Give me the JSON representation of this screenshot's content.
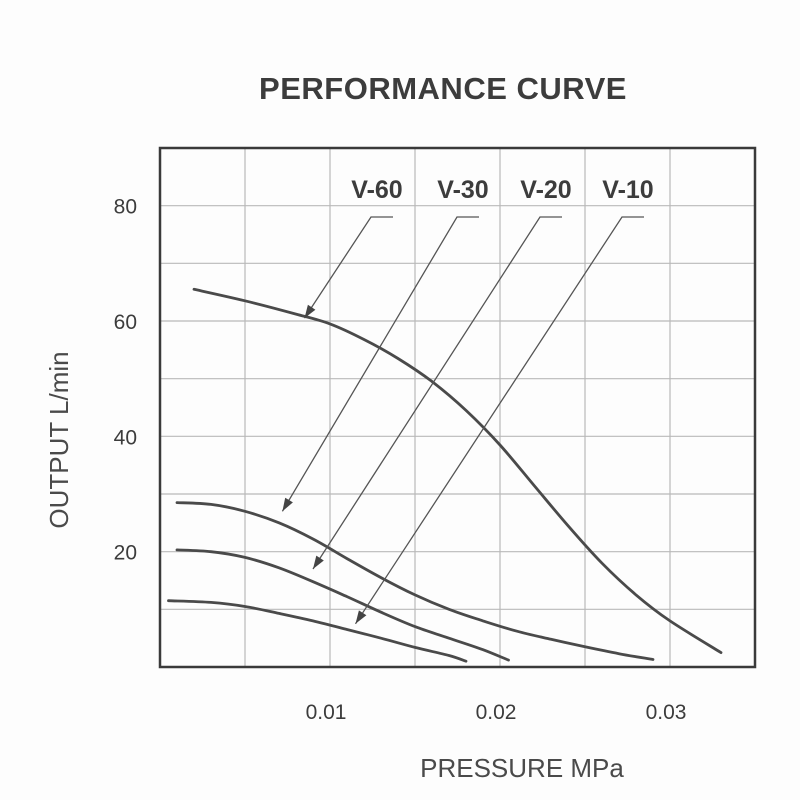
{
  "chart_data": {
    "type": "line",
    "title": "PERFORMANCE CURVE",
    "xlabel": "PRESSURE MPa",
    "ylabel": "OUTPUT L/min",
    "xlim": [
      0,
      0.035
    ],
    "ylim": [
      0,
      90
    ],
    "grid": true,
    "x_ticks": [
      {
        "value": 0.01,
        "label": "0.01"
      },
      {
        "value": 0.02,
        "label": "0.02"
      },
      {
        "value": 0.03,
        "label": "0.03"
      }
    ],
    "y_ticks": [
      {
        "value": 20,
        "label": "20"
      },
      {
        "value": 40,
        "label": "40"
      },
      {
        "value": 60,
        "label": "60"
      },
      {
        "value": 80,
        "label": "80"
      }
    ],
    "series": [
      {
        "name": "V-60",
        "points": [
          [
            0.002,
            65.5
          ],
          [
            0.005,
            63.5
          ],
          [
            0.008,
            61.2
          ],
          [
            0.01,
            59.5
          ],
          [
            0.012,
            56.8
          ],
          [
            0.014,
            53.5
          ],
          [
            0.016,
            49.5
          ],
          [
            0.018,
            44.5
          ],
          [
            0.02,
            38.5
          ],
          [
            0.022,
            31.5
          ],
          [
            0.024,
            24.5
          ],
          [
            0.026,
            18.0
          ],
          [
            0.028,
            12.5
          ],
          [
            0.03,
            8.0
          ],
          [
            0.033,
            2.5
          ]
        ],
        "arrow_point": [
          0.0085,
          60.5
        ]
      },
      {
        "name": "V-30",
        "points": [
          [
            0.001,
            28.5
          ],
          [
            0.003,
            28.2
          ],
          [
            0.005,
            27.0
          ],
          [
            0.007,
            25.0
          ],
          [
            0.009,
            22.2
          ],
          [
            0.011,
            18.8
          ],
          [
            0.013,
            15.5
          ],
          [
            0.015,
            12.5
          ],
          [
            0.017,
            10.0
          ],
          [
            0.019,
            8.0
          ],
          [
            0.021,
            6.2
          ],
          [
            0.023,
            4.8
          ],
          [
            0.025,
            3.5
          ],
          [
            0.027,
            2.3
          ],
          [
            0.029,
            1.3
          ]
        ],
        "arrow_point": [
          0.0072,
          27.0
        ]
      },
      {
        "name": "V-20",
        "points": [
          [
            0.001,
            20.3
          ],
          [
            0.003,
            20.0
          ],
          [
            0.005,
            19.0
          ],
          [
            0.007,
            17.2
          ],
          [
            0.009,
            14.8
          ],
          [
            0.011,
            12.2
          ],
          [
            0.013,
            9.5
          ],
          [
            0.015,
            7.0
          ],
          [
            0.017,
            5.0
          ],
          [
            0.019,
            3.0
          ],
          [
            0.0205,
            1.2
          ]
        ],
        "arrow_point": [
          0.009,
          17.0
        ]
      },
      {
        "name": "V-10",
        "points": [
          [
            0.0005,
            11.5
          ],
          [
            0.003,
            11.2
          ],
          [
            0.005,
            10.5
          ],
          [
            0.007,
            9.3
          ],
          [
            0.009,
            8.0
          ],
          [
            0.011,
            6.5
          ],
          [
            0.013,
            5.0
          ],
          [
            0.015,
            3.4
          ],
          [
            0.017,
            2.0
          ],
          [
            0.018,
            1.0
          ]
        ],
        "arrow_point": [
          0.0115,
          7.5
        ]
      }
    ]
  }
}
